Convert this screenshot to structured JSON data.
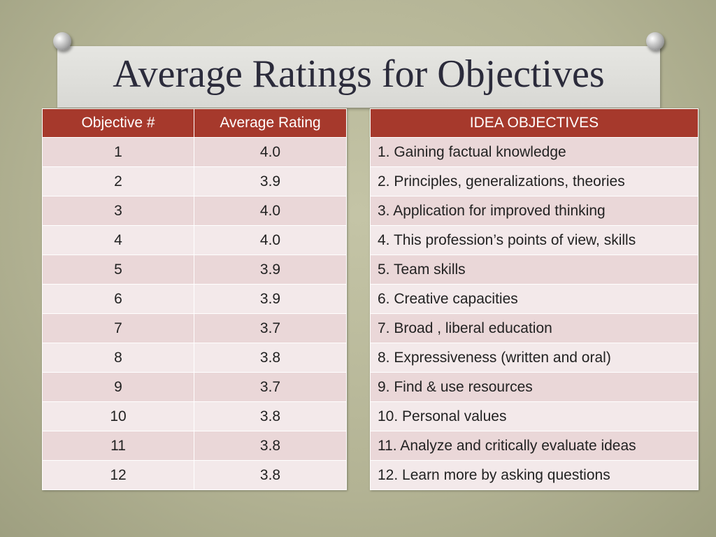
{
  "title": "Average Ratings for Objectives",
  "ratings_table": {
    "headers": [
      "Objective #",
      "Average Rating"
    ],
    "rows": [
      [
        "1",
        "4.0"
      ],
      [
        "2",
        "3.9"
      ],
      [
        "3",
        "4.0"
      ],
      [
        "4",
        "4.0"
      ],
      [
        "5",
        "3.9"
      ],
      [
        "6",
        "3.9"
      ],
      [
        "7",
        "3.7"
      ],
      [
        "8",
        "3.8"
      ],
      [
        "9",
        "3.7"
      ],
      [
        "10",
        "3.8"
      ],
      [
        "11",
        "3.8"
      ],
      [
        "12",
        "3.8"
      ]
    ]
  },
  "objectives_table": {
    "header": "IDEA OBJECTIVES",
    "rows": [
      "1. Gaining factual knowledge",
      "2. Principles, generalizations, theories",
      "3. Application for improved thinking",
      "4. This profession’s points of view, skills",
      "5. Team skills",
      "6. Creative capacities",
      "7. Broad , liberal education",
      "8. Expressiveness (written and oral)",
      "9. Find & use resources",
      "10. Personal values",
      "11. Analyze and critically evaluate ideas",
      "12. Learn more by asking questions"
    ]
  }
}
